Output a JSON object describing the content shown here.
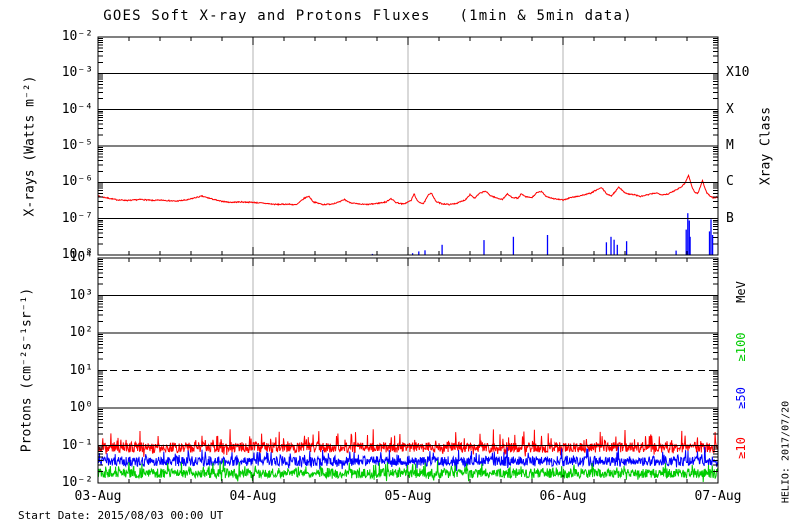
{
  "chart_data": {
    "type": "line",
    "title": "GOES Soft X-ray and Protons Fluxes   (1min & 5min data)",
    "start_date_label": "Start Date: 2015/08/03 00:00 UT",
    "credit": "HELIO: 2017/07/20",
    "grid": {
      "day_gridline_color": "#b3b3b3",
      "axis_color": "#000000"
    },
    "x_axis": {
      "tick_labels": [
        "03-Aug",
        "04-Aug",
        "05-Aug",
        "06-Aug",
        "07-Aug"
      ],
      "range_days": [
        0,
        4
      ],
      "minor_tick_step_days": 0.2
    },
    "panels": [
      {
        "name": "xray",
        "ylabel": "X-rays (Watts m⁻²)",
        "right_axis_title": "Xray Class",
        "log_range": [
          -8,
          -2
        ],
        "ytick_labels": [
          "10⁻²",
          "10⁻³",
          "10⁻⁴",
          "10⁻⁵",
          "10⁻⁶",
          "10⁻⁷",
          "10⁻⁸"
        ],
        "ytick_logs": [
          -2,
          -3,
          -4,
          -5,
          -6,
          -7,
          -8
        ],
        "hlines_solid": [
          -3,
          -4,
          -5,
          -6,
          -7
        ],
        "hlines_dashed": [],
        "class_labels": [
          {
            "text": "X10",
            "log": -3
          },
          {
            "text": "X",
            "log": -4
          },
          {
            "text": "M",
            "log": -5
          },
          {
            "text": "C",
            "log": -6
          },
          {
            "text": "B",
            "log": -7
          }
        ]
      },
      {
        "name": "protons",
        "ylabel": "Protons (cm⁻²s⁻¹sr⁻¹)",
        "log_range": [
          -2,
          4
        ],
        "ytick_labels": [
          "10⁴",
          "10³",
          "10²",
          "10¹",
          "10⁰",
          "10⁻¹",
          "10⁻²"
        ],
        "ytick_logs": [
          4,
          3,
          2,
          1,
          0,
          -1,
          -2
        ],
        "hlines_solid": [
          3,
          2,
          0,
          -1
        ],
        "hlines_dashed": [
          1
        ],
        "right_labels": [
          {
            "text": "MeV",
            "log": 3.1,
            "color": "#000000"
          },
          {
            "text": "≥100",
            "log": 1.63,
            "color": "#00cc00"
          },
          {
            "text": "≥50",
            "log": 0.27,
            "color": "#0000ff"
          },
          {
            "text": "≥10",
            "log": -1.07,
            "color": "#ff0000"
          }
        ]
      }
    ],
    "series": [
      {
        "name": "xray-long-channel",
        "panel": 0,
        "color": "#ff0000",
        "style": "line",
        "jitter_log10": 0.03,
        "seed": 7,
        "points_day_log10": [
          [
            0.0,
            -6.38
          ],
          [
            0.06,
            -6.43
          ],
          [
            0.12,
            -6.48
          ],
          [
            0.2,
            -6.5
          ],
          [
            0.28,
            -6.47
          ],
          [
            0.35,
            -6.5
          ],
          [
            0.42,
            -6.49
          ],
          [
            0.5,
            -6.52
          ],
          [
            0.58,
            -6.48
          ],
          [
            0.63,
            -6.42
          ],
          [
            0.67,
            -6.38
          ],
          [
            0.72,
            -6.44
          ],
          [
            0.78,
            -6.51
          ],
          [
            0.85,
            -6.55
          ],
          [
            0.92,
            -6.54
          ],
          [
            1.0,
            -6.55
          ],
          [
            1.08,
            -6.58
          ],
          [
            1.15,
            -6.61
          ],
          [
            1.22,
            -6.6
          ],
          [
            1.28,
            -6.62
          ],
          [
            1.33,
            -6.44
          ],
          [
            1.36,
            -6.38
          ],
          [
            1.39,
            -6.54
          ],
          [
            1.45,
            -6.61
          ],
          [
            1.5,
            -6.6
          ],
          [
            1.56,
            -6.54
          ],
          [
            1.59,
            -6.47
          ],
          [
            1.62,
            -6.55
          ],
          [
            1.68,
            -6.6
          ],
          [
            1.74,
            -6.61
          ],
          [
            1.8,
            -6.58
          ],
          [
            1.86,
            -6.54
          ],
          [
            1.89,
            -6.44
          ],
          [
            1.92,
            -6.55
          ],
          [
            1.97,
            -6.6
          ],
          [
            2.02,
            -6.5
          ],
          [
            2.04,
            -6.31
          ],
          [
            2.06,
            -6.52
          ],
          [
            2.1,
            -6.59
          ],
          [
            2.13,
            -6.36
          ],
          [
            2.15,
            -6.28
          ],
          [
            2.18,
            -6.53
          ],
          [
            2.22,
            -6.59
          ],
          [
            2.27,
            -6.61
          ],
          [
            2.32,
            -6.57
          ],
          [
            2.37,
            -6.48
          ],
          [
            2.4,
            -6.33
          ],
          [
            2.43,
            -6.44
          ],
          [
            2.46,
            -6.31
          ],
          [
            2.5,
            -6.24
          ],
          [
            2.53,
            -6.36
          ],
          [
            2.57,
            -6.43
          ],
          [
            2.61,
            -6.47
          ],
          [
            2.64,
            -6.32
          ],
          [
            2.67,
            -6.41
          ],
          [
            2.71,
            -6.44
          ],
          [
            2.73,
            -6.32
          ],
          [
            2.76,
            -6.4
          ],
          [
            2.8,
            -6.42
          ],
          [
            2.83,
            -6.29
          ],
          [
            2.86,
            -6.25
          ],
          [
            2.89,
            -6.38
          ],
          [
            2.93,
            -6.44
          ],
          [
            2.97,
            -6.47
          ],
          [
            3.0,
            -6.49
          ],
          [
            3.05,
            -6.42
          ],
          [
            3.1,
            -6.38
          ],
          [
            3.14,
            -6.34
          ],
          [
            3.18,
            -6.3
          ],
          [
            3.22,
            -6.2
          ],
          [
            3.25,
            -6.15
          ],
          [
            3.28,
            -6.31
          ],
          [
            3.31,
            -6.38
          ],
          [
            3.34,
            -6.24
          ],
          [
            3.36,
            -6.12
          ],
          [
            3.39,
            -6.26
          ],
          [
            3.42,
            -6.32
          ],
          [
            3.46,
            -6.34
          ],
          [
            3.5,
            -6.39
          ],
          [
            3.55,
            -6.34
          ],
          [
            3.6,
            -6.29
          ],
          [
            3.64,
            -6.34
          ],
          [
            3.68,
            -6.32
          ],
          [
            3.71,
            -6.25
          ],
          [
            3.74,
            -6.18
          ],
          [
            3.77,
            -6.1
          ],
          [
            3.79,
            -6.0
          ],
          [
            3.81,
            -5.8
          ],
          [
            3.83,
            -6.1
          ],
          [
            3.85,
            -6.28
          ],
          [
            3.87,
            -6.3
          ],
          [
            3.88,
            -6.2
          ],
          [
            3.9,
            -5.95
          ],
          [
            3.915,
            -6.15
          ],
          [
            3.93,
            -6.3
          ],
          [
            3.95,
            -6.38
          ],
          [
            3.97,
            -6.43
          ],
          [
            4.0,
            -6.4
          ]
        ]
      },
      {
        "name": "xray-short-channel",
        "panel": 0,
        "color": "#0000ff",
        "style": "spikes",
        "base_log10": -8.0,
        "spikes_day_log10": [
          [
            1.77,
            -7.97
          ],
          [
            2.03,
            -7.95
          ],
          [
            2.07,
            -7.9
          ],
          [
            2.11,
            -7.87
          ],
          [
            2.22,
            -7.72
          ],
          [
            2.49,
            -7.59
          ],
          [
            2.68,
            -7.5
          ],
          [
            2.9,
            -7.45
          ],
          [
            3.28,
            -7.65
          ],
          [
            3.31,
            -7.5
          ],
          [
            3.33,
            -7.58
          ],
          [
            3.35,
            -7.72
          ],
          [
            3.41,
            -7.62
          ],
          [
            3.73,
            -7.88
          ],
          [
            3.795,
            -7.3
          ],
          [
            3.805,
            -6.85
          ],
          [
            3.815,
            -7.05
          ],
          [
            3.82,
            -7.5
          ],
          [
            3.945,
            -7.35
          ],
          [
            3.955,
            -7.02
          ],
          [
            3.965,
            -7.45
          ]
        ]
      },
      {
        "name": "protons-ge10MeV",
        "panel": 1,
        "color": "#ff0000",
        "style": "noisy_band",
        "center_log10": -1.05,
        "noise_log10": 0.14,
        "spike_log10": 0.42,
        "seed": 11,
        "clip_min_log10": -1.35
      },
      {
        "name": "protons-ge50MeV",
        "panel": 1,
        "color": "#0000ff",
        "style": "noisy_band",
        "center_log10": -1.42,
        "noise_log10": 0.13,
        "spike_log10": 0.3,
        "seed": 23,
        "clip_min_log10": -1.68
      },
      {
        "name": "protons-ge100MeV",
        "panel": 1,
        "color": "#00cc00",
        "style": "noisy_band",
        "center_log10": -1.74,
        "noise_log10": 0.13,
        "spike_log10": 0.24,
        "seed": 37,
        "clip_min_log10": -1.99
      }
    ]
  }
}
